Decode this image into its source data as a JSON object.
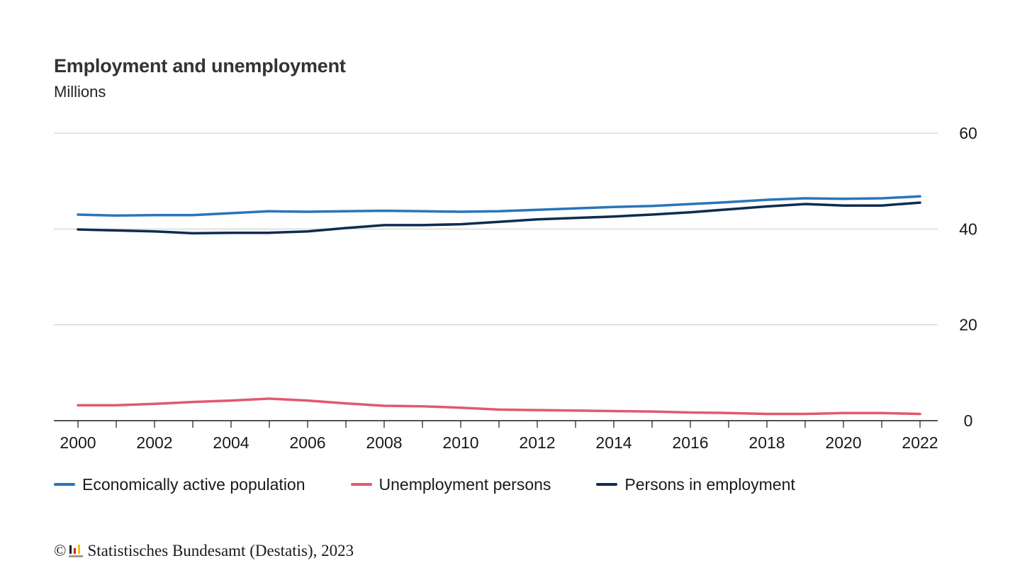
{
  "title": "Employment and unemployment",
  "subtitle": "Millions",
  "credit": {
    "copyright_symbol": "©",
    "text": "Statistisches Bundesamt (Destatis), 2023"
  },
  "chart_data": {
    "type": "line",
    "title": "Employment and unemployment",
    "subtitle": "Millions",
    "x": [
      2000,
      2001,
      2002,
      2003,
      2004,
      2005,
      2006,
      2007,
      2008,
      2009,
      2010,
      2011,
      2012,
      2013,
      2014,
      2015,
      2016,
      2017,
      2018,
      2019,
      2020,
      2021,
      2022
    ],
    "x_tick_labels": [
      "2000",
      "2002",
      "2004",
      "2006",
      "2008",
      "2010",
      "2012",
      "2014",
      "2016",
      "2018",
      "2020",
      "2022"
    ],
    "y_ticks": [
      0,
      20,
      40,
      60
    ],
    "ylim": [
      0,
      60
    ],
    "y_axis_side": "right",
    "grid": true,
    "legend_position": "bottom",
    "series": [
      {
        "name": "Economically active population",
        "color": "#2a75b9",
        "values": [
          43.0,
          42.8,
          42.9,
          42.9,
          43.3,
          43.7,
          43.6,
          43.7,
          43.8,
          43.7,
          43.6,
          43.7,
          44.0,
          44.3,
          44.6,
          44.8,
          45.2,
          45.6,
          46.1,
          46.4,
          46.3,
          46.4,
          46.8
        ]
      },
      {
        "name": "Unemployment persons",
        "color": "#e05a6e",
        "values": [
          3.2,
          3.2,
          3.5,
          3.9,
          4.2,
          4.6,
          4.2,
          3.6,
          3.1,
          3.0,
          2.7,
          2.3,
          2.2,
          2.1,
          2.0,
          1.9,
          1.7,
          1.6,
          1.4,
          1.4,
          1.6,
          1.6,
          1.4
        ]
      },
      {
        "name": "Persons in employment",
        "color": "#0e2d4f",
        "values": [
          39.9,
          39.7,
          39.5,
          39.1,
          39.2,
          39.2,
          39.5,
          40.2,
          40.8,
          40.8,
          41.0,
          41.5,
          42.0,
          42.3,
          42.6,
          43.0,
          43.5,
          44.1,
          44.7,
          45.2,
          44.9,
          44.9,
          45.5
        ]
      }
    ]
  }
}
